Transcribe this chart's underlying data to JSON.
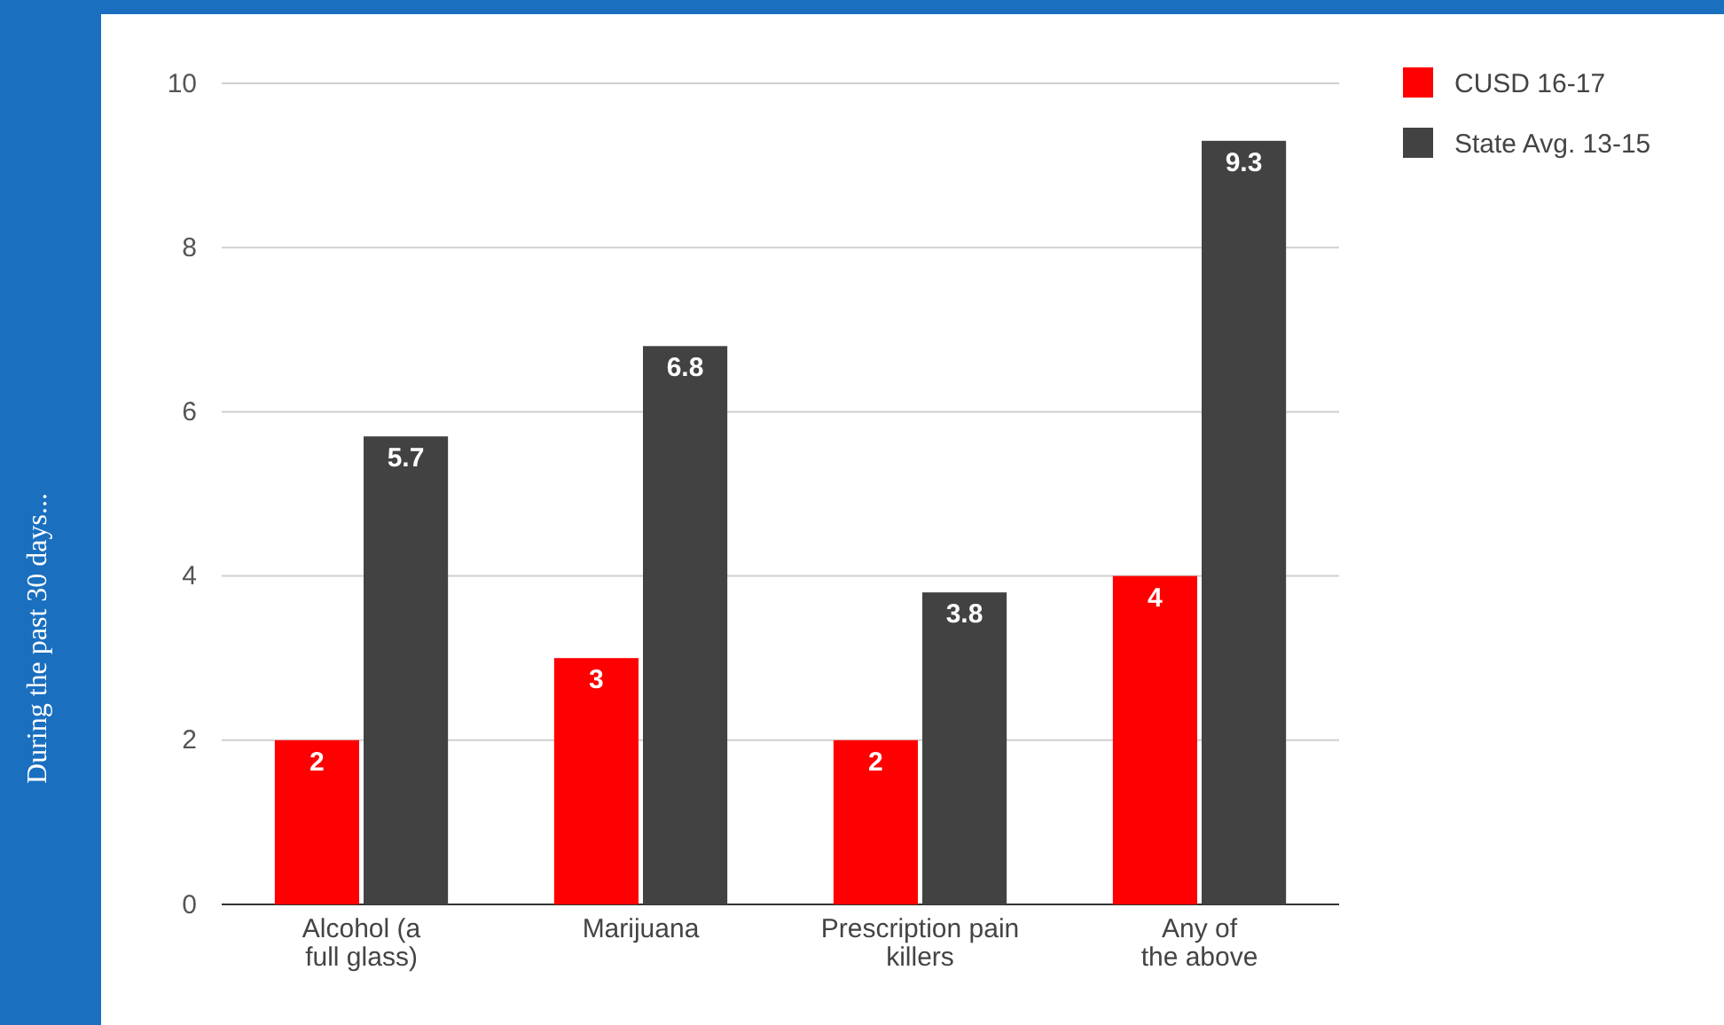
{
  "chart_data": {
    "type": "bar",
    "ylabel": "During the past 30 days...",
    "categories": [
      "Alcohol (a full glass)",
      "Marijuana",
      "Prescription pain killers",
      "Any of the above"
    ],
    "series": [
      {
        "name": "CUSD 16-17",
        "color": "#ff0000",
        "values": [
          2,
          3,
          2,
          4
        ]
      },
      {
        "name": "State Avg. 13-15",
        "color": "#424242",
        "values": [
          5.7,
          6.8,
          3.8,
          9.3
        ]
      }
    ],
    "ylim": [
      0,
      10
    ],
    "yticks": [
      0,
      2,
      4,
      6,
      8,
      10
    ],
    "grid": "y",
    "legend": "top right",
    "data_labels": true
  }
}
